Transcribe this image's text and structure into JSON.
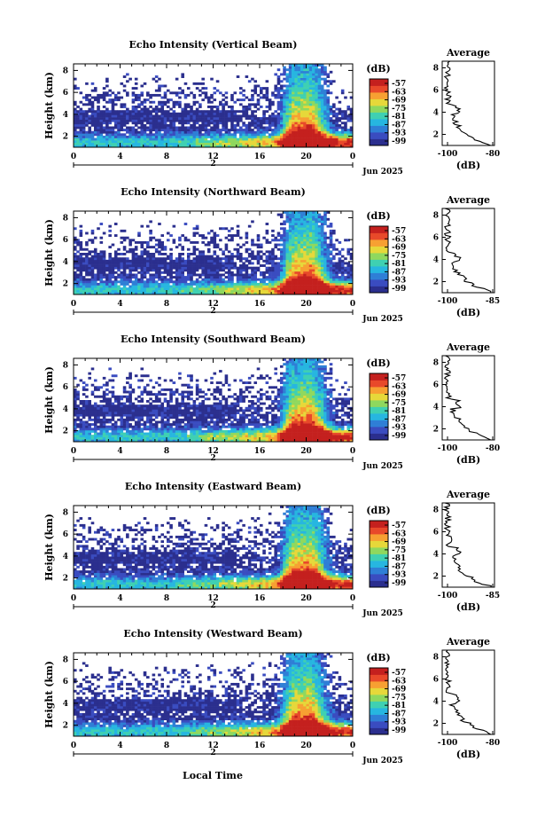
{
  "chart_data": [
    {
      "type": "heatmap",
      "title": "Echo Intensity (Vertical Beam)",
      "ylabel": "Height (km)",
      "xticks": [
        "0",
        "4",
        "8",
        "12",
        "16",
        "20",
        "0"
      ],
      "date_tick": "2",
      "date_label": "Jun 2025",
      "yticks": [
        "2",
        "4",
        "6",
        "8"
      ],
      "colorbar_unit": "(dB)",
      "colorbar_ticks": [
        "-57",
        "-63",
        "-69",
        "-75",
        "-81",
        "-87",
        "-93",
        "-99"
      ],
      "average": {
        "title": "Average",
        "xlabel": "(dB)",
        "xticks": [
          "-100",
          "-80"
        ],
        "yticks": [
          "2",
          "4",
          "6",
          "8"
        ]
      }
    },
    {
      "type": "heatmap",
      "title": "Echo Intensity (Northward Beam)",
      "ylabel": "Height (km)",
      "xticks": [
        "0",
        "4",
        "8",
        "12",
        "16",
        "20",
        "0"
      ],
      "date_tick": "2",
      "date_label": "Jun 2025",
      "yticks": [
        "2",
        "4",
        "6",
        "8"
      ],
      "colorbar_unit": "(dB)",
      "colorbar_ticks": [
        "-57",
        "-63",
        "-69",
        "-75",
        "-81",
        "-87",
        "-93",
        "-99"
      ],
      "average": {
        "title": "Average",
        "xlabel": "(dB)",
        "xticks": [
          "-100",
          "-85"
        ],
        "yticks": [
          "2",
          "4",
          "6",
          "8"
        ]
      }
    },
    {
      "type": "heatmap",
      "title": "Echo Intensity (Southward Beam)",
      "ylabel": "Height (km)",
      "xticks": [
        "0",
        "4",
        "8",
        "12",
        "16",
        "20",
        "0"
      ],
      "date_tick": "2",
      "date_label": "Jun 2025",
      "yticks": [
        "2",
        "4",
        "6",
        "8"
      ],
      "colorbar_unit": "(dB)",
      "colorbar_ticks": [
        "-57",
        "-63",
        "-69",
        "-75",
        "-81",
        "-87",
        "-93",
        "-99"
      ],
      "average": {
        "title": "Average",
        "xlabel": "(dB)",
        "xticks": [
          "-100",
          "-80"
        ],
        "yticks": [
          "2",
          "4",
          "6",
          "8"
        ]
      }
    },
    {
      "type": "heatmap",
      "title": "Echo Intensity (Eastward Beam)",
      "ylabel": "Height (km)",
      "xticks": [
        "0",
        "4",
        "8",
        "12",
        "16",
        "20",
        "0"
      ],
      "date_tick": "2",
      "date_label": "Jun 2025",
      "yticks": [
        "2",
        "4",
        "6",
        "8"
      ],
      "colorbar_unit": "(dB)",
      "colorbar_ticks": [
        "-57",
        "-63",
        "-69",
        "-75",
        "-81",
        "-87",
        "-93",
        "-99"
      ],
      "average": {
        "title": "Average",
        "xlabel": "(dB)",
        "xticks": [
          "-100",
          "-85"
        ],
        "yticks": [
          "2",
          "4",
          "6",
          "8"
        ]
      }
    },
    {
      "type": "heatmap",
      "title": "Echo Intensity (Westward Beam)",
      "ylabel": "Height (km)",
      "xticks": [
        "0",
        "4",
        "8",
        "12",
        "16",
        "20",
        "0"
      ],
      "date_tick": "2",
      "date_label": "Jun 2025",
      "yticks": [
        "2",
        "4",
        "6",
        "8"
      ],
      "colorbar_unit": "(dB)",
      "colorbar_ticks": [
        "-57",
        "-63",
        "-69",
        "-75",
        "-81",
        "-87",
        "-93",
        "-99"
      ],
      "average": {
        "title": "Average",
        "xlabel": "(dB)",
        "xticks": [
          "-100",
          "-80"
        ],
        "yticks": [
          "2",
          "4",
          "6",
          "8"
        ]
      }
    }
  ],
  "xlabel": "Local Time",
  "colormap": [
    "#2b2f8e",
    "#3a4cc0",
    "#2f7fd6",
    "#27b6e0",
    "#3fd0b2",
    "#8fd85e",
    "#e6d83a",
    "#f7a032",
    "#e8492a",
    "#c4201e"
  ]
}
